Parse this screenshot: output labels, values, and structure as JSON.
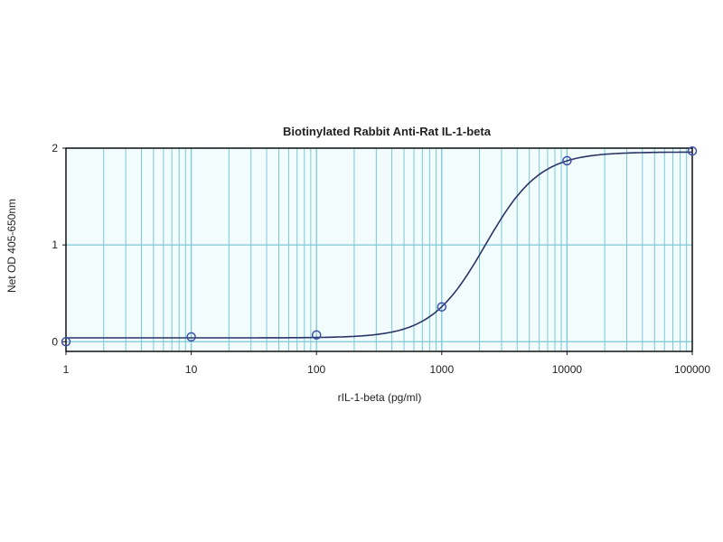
{
  "chart_data": {
    "type": "scatter",
    "title": "Biotinylated Rabbit Anti-Rat IL-1-beta",
    "xlabel": "rIL-1-beta (pg/ml)",
    "ylabel": "Net OD 405-650nm",
    "xscale": "log",
    "xlim": [
      1,
      100000
    ],
    "ylim": [
      -0.1,
      2
    ],
    "xticks": [
      "1",
      "10",
      "100",
      "1000",
      "10000",
      "100000"
    ],
    "yticks": [
      "0",
      "1",
      "2"
    ],
    "grid": true,
    "points": {
      "x": [
        1,
        10,
        100,
        1000,
        10000,
        100000
      ],
      "y": [
        0.0,
        0.05,
        0.07,
        0.36,
        1.87,
        1.97
      ]
    },
    "fit_curve": {
      "model": "4PL",
      "bottom": 0.04,
      "top": 1.96,
      "ec50": 2230,
      "hill": 2.0
    },
    "colors": {
      "grid": "#7cc7d6",
      "background": "#f2fcfd",
      "curve": "#2a3566",
      "marker": "#3a4fa8"
    }
  }
}
